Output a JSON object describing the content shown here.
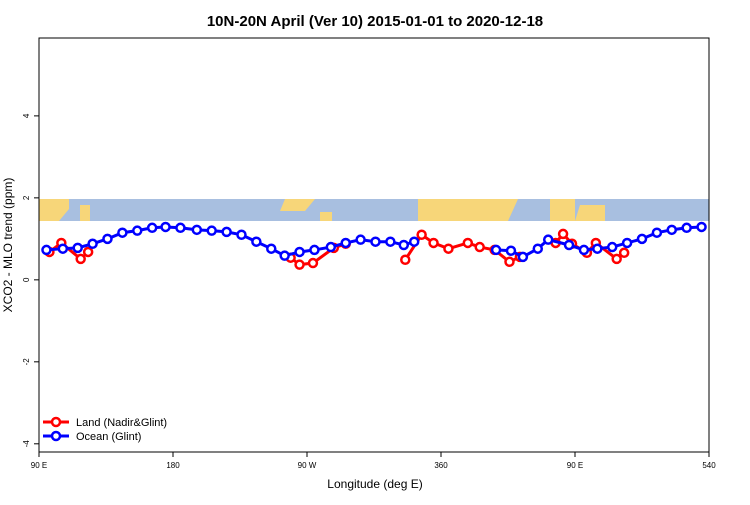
{
  "chart_data": {
    "type": "line",
    "title": "10N-20N April (Ver 10)   2015-01-01 to 2020-12-18",
    "xlabel": "Longitude (deg E)",
    "ylabel": "XCO2 - MLO trend (ppm)",
    "xlim": [
      90,
      540
    ],
    "ylim": [
      -4.2,
      5.9
    ],
    "xticks": [
      {
        "value": 90,
        "label": "90 E"
      },
      180,
      {
        "value": 270,
        "label": "90 W"
      },
      360,
      {
        "value": 450,
        "label": "90 E"
      },
      540
    ],
    "yticks": [
      -4,
      -2,
      0,
      2,
      4
    ],
    "legend": "bottom-left",
    "series": [
      {
        "name": "Land (Nadir&Glint)",
        "color": "#ff0000",
        "x": [
          97,
          105,
          118,
          123,
          190,
          259,
          265,
          274,
          288,
          296,
          316,
          336,
          347,
          355,
          365,
          378,
          386,
          396,
          406,
          413,
          425,
          437,
          442,
          448,
          458,
          464,
          478,
          483
        ],
        "values": [
          0.68,
          0.9,
          0.51,
          0.68,
          null,
          0.54,
          0.37,
          0.41,
          0.78,
          0.88,
          null,
          0.49,
          1.1,
          0.9,
          0.76,
          0.9,
          0.8,
          0.73,
          0.44,
          0.56,
          null,
          0.9,
          1.12,
          0.88,
          0.66,
          0.9,
          0.51,
          0.66
        ]
      },
      {
        "name": "Ocean (Glint)",
        "color": "#0000ff",
        "x": [
          95,
          106,
          116,
          126,
          136,
          146,
          156,
          166,
          175,
          185,
          196,
          206,
          216,
          226,
          236,
          246,
          255,
          265,
          275,
          286,
          296,
          306,
          316,
          326,
          335,
          342,
          370,
          397,
          407,
          415,
          425,
          432,
          446,
          456,
          465,
          475,
          485,
          495,
          505,
          515,
          525,
          535
        ],
        "values": [
          0.73,
          0.76,
          0.78,
          0.88,
          1.0,
          1.15,
          1.2,
          1.27,
          1.29,
          1.27,
          1.22,
          1.2,
          1.17,
          1.1,
          0.93,
          0.76,
          0.59,
          0.68,
          0.73,
          0.8,
          0.9,
          0.98,
          0.93,
          0.93,
          0.85,
          0.93,
          null,
          0.73,
          0.71,
          0.56,
          0.76,
          0.98,
          0.85,
          0.73,
          0.76,
          0.8,
          0.9,
          1.0,
          1.15,
          1.22,
          1.27,
          1.29
        ]
      }
    ]
  }
}
